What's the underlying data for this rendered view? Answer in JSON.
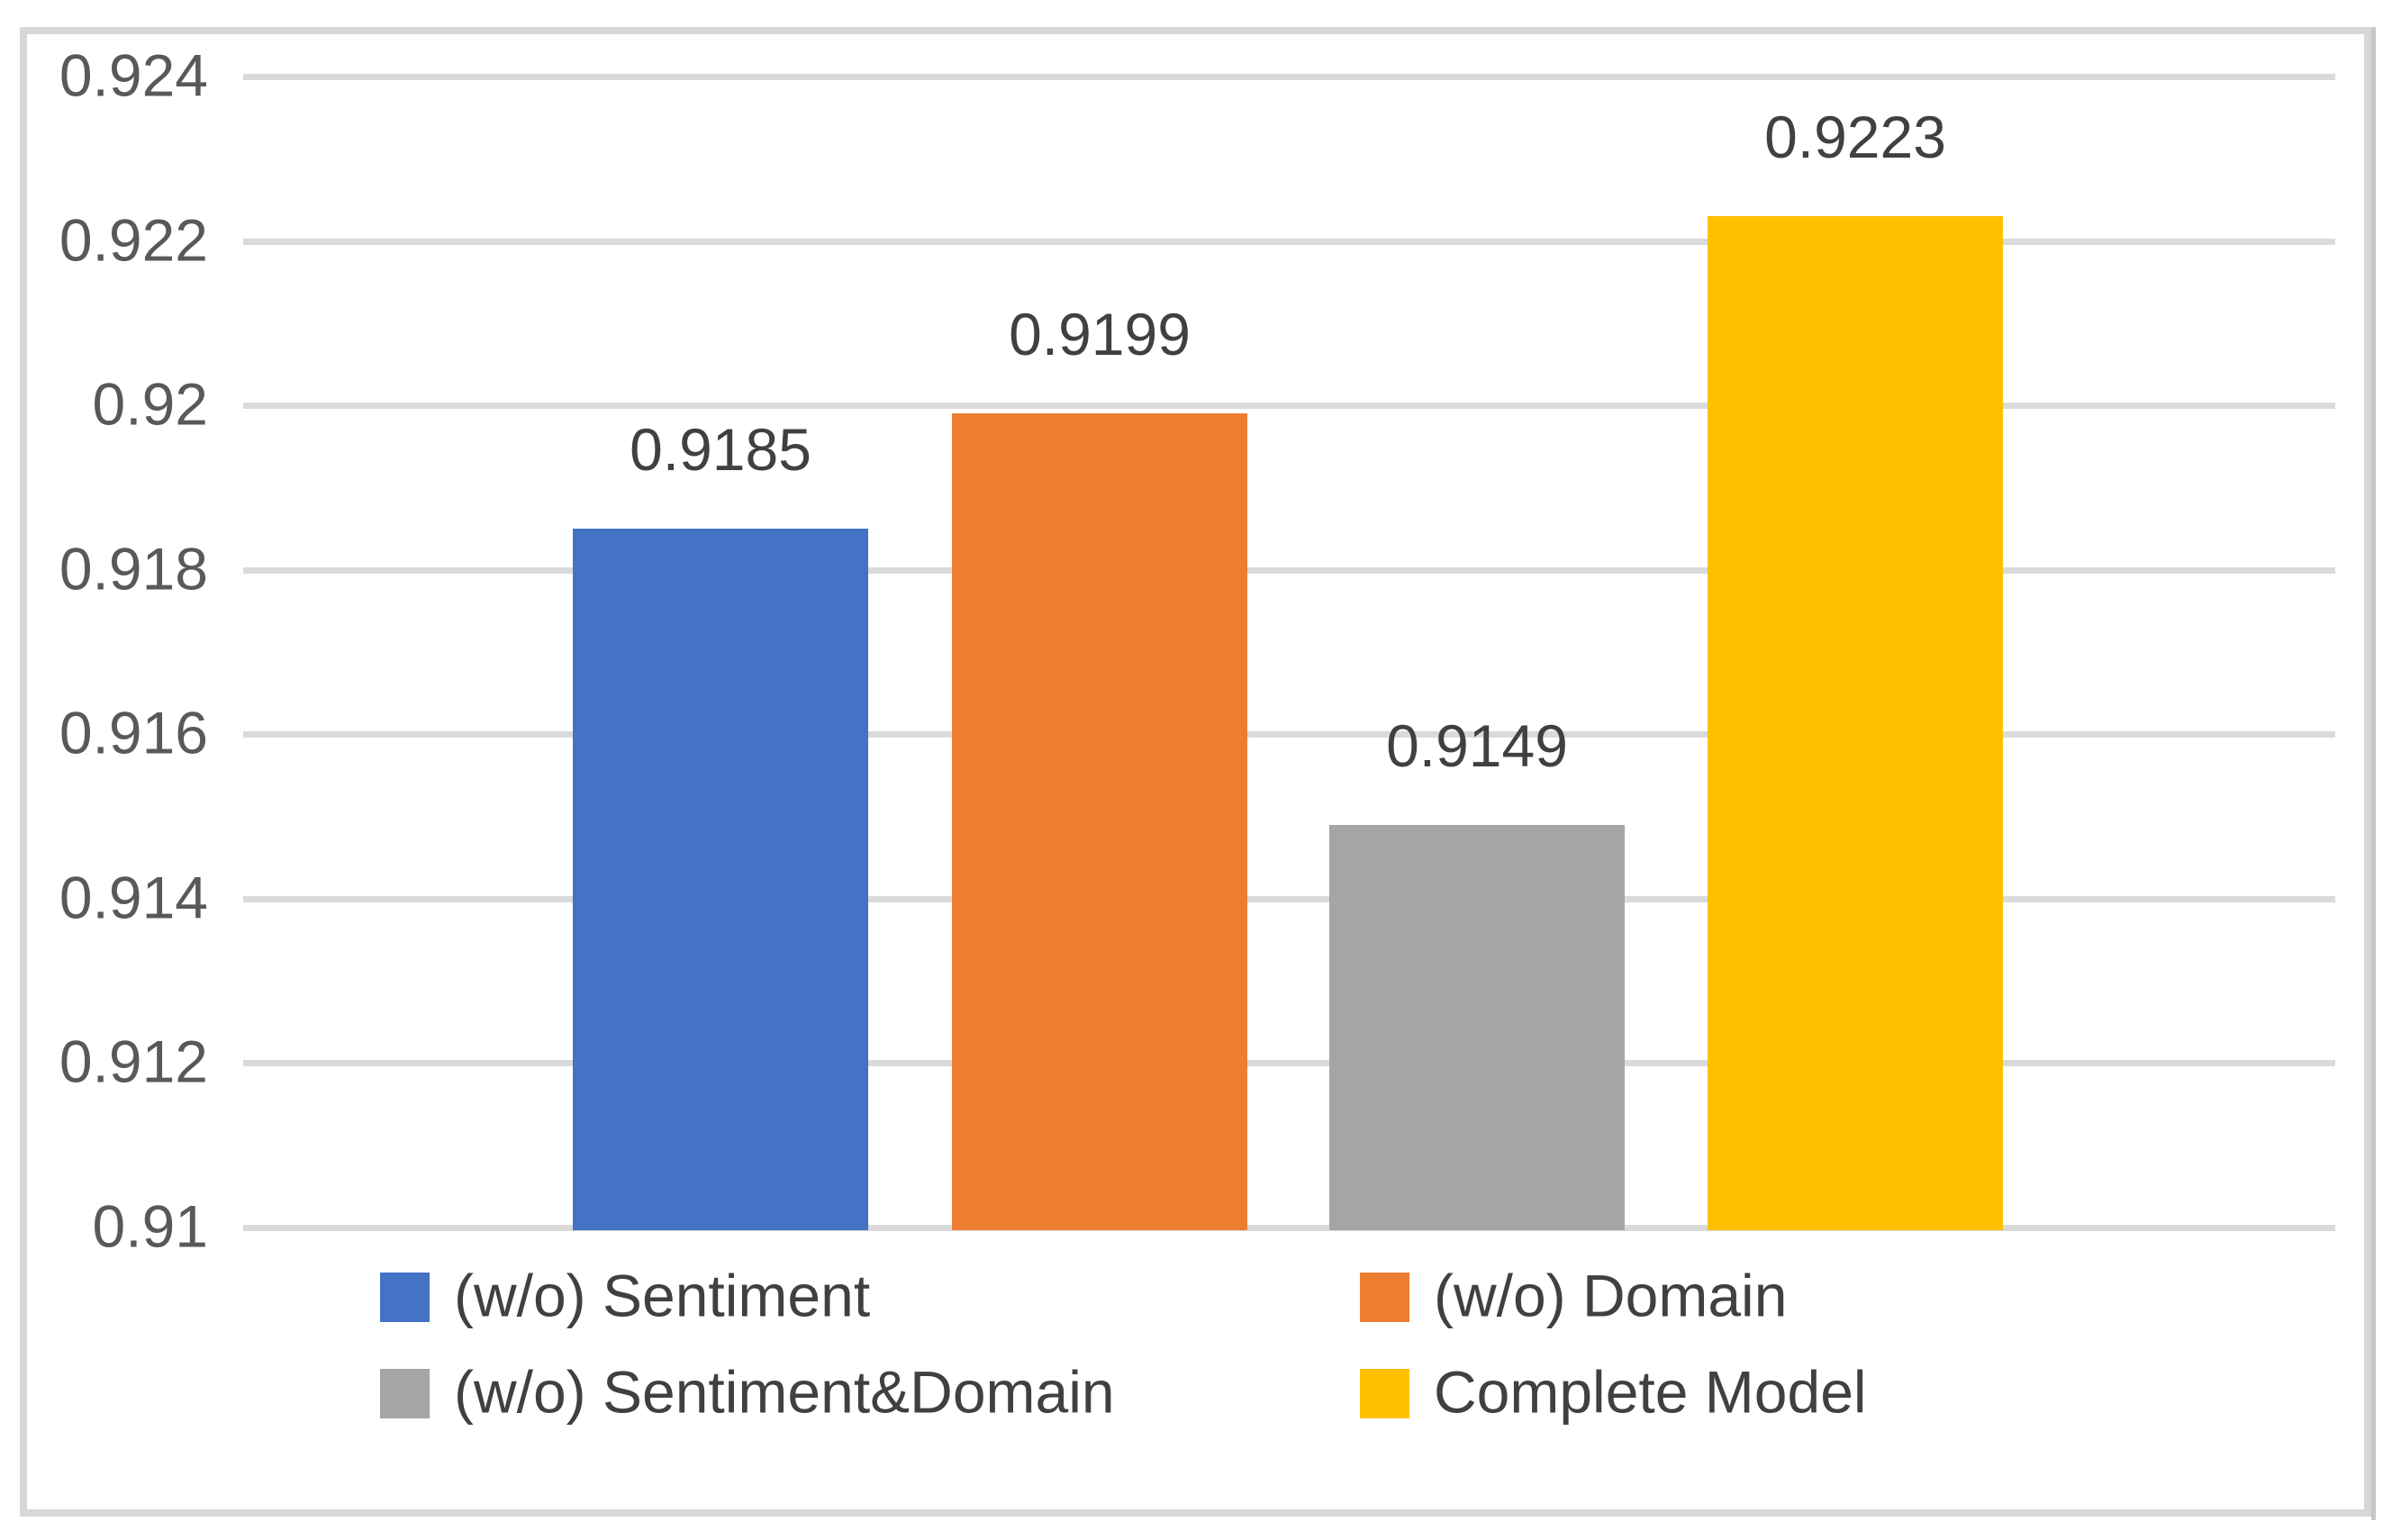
{
  "chart_data": {
    "type": "bar",
    "title": "",
    "xlabel": "",
    "ylabel": "",
    "categories": [
      "(w/o) Sentiment",
      "(w/o) Domain",
      "(w/o) Sentiment&Domain",
      "Complete Model"
    ],
    "values": [
      0.9185,
      0.9199,
      0.9149,
      0.9223
    ],
    "data_labels": [
      "0.9185",
      "0.9199",
      "0.9149",
      "0.9223"
    ],
    "bar_colors": [
      "#4472C4",
      "#ED7D31",
      "#A5A5A5",
      "#FFC000"
    ],
    "ylim": [
      0.91,
      0.924
    ],
    "yticks": [
      {
        "value": 0.924,
        "label": "0.924"
      },
      {
        "value": 0.922,
        "label": "0.922"
      },
      {
        "value": 0.92,
        "label": "0.92"
      },
      {
        "value": 0.918,
        "label": "0.918"
      },
      {
        "value": 0.916,
        "label": "0.916"
      },
      {
        "value": 0.914,
        "label": "0.914"
      },
      {
        "value": 0.912,
        "label": "0.912"
      },
      {
        "value": 0.91,
        "label": "0.91"
      }
    ],
    "grid": true,
    "legend": {
      "position": "bottom",
      "entries": [
        {
          "label": "(w/o) Sentiment",
          "color": "#4472C4"
        },
        {
          "label": "(w/o) Domain",
          "color": "#ED7D31"
        },
        {
          "label": "(w/o) Sentiment&Domain",
          "color": "#A5A5A5"
        },
        {
          "label": "Complete Model",
          "color": "#FFC000"
        }
      ]
    },
    "colors": {
      "axis_tick_text": "#595959",
      "data_label_text": "#404040",
      "legend_text": "#404040",
      "gridline": "#DADADA",
      "chart_border": "#D7D7D7",
      "background": "#FFFFFF"
    }
  }
}
